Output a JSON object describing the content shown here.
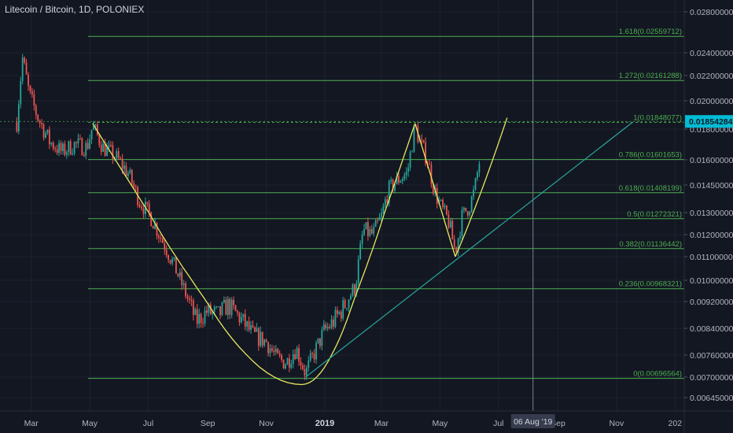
{
  "header": {
    "title": "Litecoin / Bitcoin, 1D, POLONIEX"
  },
  "chart_data": {
    "type": "candlestick",
    "symbol": "Litecoin / Bitcoin",
    "interval": "1D",
    "exchange": "POLONIEX",
    "y_axis": {
      "ticks": [
        "0.02800000",
        "0.02400000",
        "0.02200000",
        "0.02000000",
        "0.01800000",
        "0.01600000",
        "0.01450000",
        "0.01300000",
        "0.01200000",
        "0.01100000",
        "0.01000000",
        "0.00920000",
        "0.00840000",
        "0.00760000",
        "0.00700000",
        "0.00645000"
      ],
      "tick_values": [
        0.028,
        0.024,
        0.022,
        0.02,
        0.018,
        0.016,
        0.0145,
        0.013,
        0.012,
        0.011,
        0.01,
        0.0092,
        0.0084,
        0.0076,
        0.007,
        0.00645
      ]
    },
    "x_axis": {
      "labels": [
        "Mar",
        "May",
        "Jul",
        "Sep",
        "Nov",
        "2019",
        "Mar",
        "May",
        "Jul",
        "Sep",
        "Nov",
        "202"
      ],
      "crosshair_label": "06 Aug '19"
    },
    "current_price": {
      "label": "0.01854284",
      "value": 0.01854284,
      "color": "#00bcd4"
    },
    "fib_levels": [
      {
        "label": "1.618(0.02559712)",
        "value": 0.02559712
      },
      {
        "label": "1.272(0.02161288)",
        "value": 0.02161288
      },
      {
        "label": "1(0.01848077)",
        "value": 0.01848077
      },
      {
        "label": "0.786(0.01601653)",
        "value": 0.01601653
      },
      {
        "label": "0.618(0.01408199)",
        "value": 0.01408199
      },
      {
        "label": "0.5(0.01272321)",
        "value": 0.01272321
      },
      {
        "label": "0.382(0.01136442)",
        "value": 0.01136442
      },
      {
        "label": "0.236(0.00968321)",
        "value": 0.00968321
      },
      {
        "label": "0(0.00696564)",
        "value": 0.00696564
      }
    ],
    "price_path": [
      [
        "2018-02-14",
        0.0185
      ],
      [
        "2018-02-20",
        0.0235
      ],
      [
        "2018-02-27",
        0.0205
      ],
      [
        "2018-03-08",
        0.0188
      ],
      [
        "2018-03-20",
        0.0172
      ],
      [
        "2018-04-02",
        0.0165
      ],
      [
        "2018-04-15",
        0.017
      ],
      [
        "2018-04-28",
        0.0168
      ],
      [
        "2018-05-04",
        0.0182
      ],
      [
        "2018-05-15",
        0.0168
      ],
      [
        "2018-05-28",
        0.0162
      ],
      [
        "2018-06-10",
        0.0152
      ],
      [
        "2018-06-22",
        0.0136
      ],
      [
        "2018-07-04",
        0.0128
      ],
      [
        "2018-07-15",
        0.0118
      ],
      [
        "2018-07-28",
        0.0106
      ],
      [
        "2018-08-10",
        0.0094
      ],
      [
        "2018-08-20",
        0.0086
      ],
      [
        "2018-08-31",
        0.0089
      ],
      [
        "2018-09-12",
        0.0088
      ],
      [
        "2018-09-22",
        0.0091
      ],
      [
        "2018-10-05",
        0.0087
      ],
      [
        "2018-10-18",
        0.0082
      ],
      [
        "2018-11-01",
        0.008
      ],
      [
        "2018-11-12",
        0.0075
      ],
      [
        "2018-11-22",
        0.0074
      ],
      [
        "2018-12-02",
        0.0078
      ],
      [
        "2018-12-12",
        0.0071
      ],
      [
        "2018-12-20",
        0.0076
      ],
      [
        "2018-12-31",
        0.0083
      ],
      [
        "2019-01-10",
        0.0086
      ],
      [
        "2019-01-22",
        0.0091
      ],
      [
        "2019-02-02",
        0.0098
      ],
      [
        "2019-02-10",
        0.0122
      ],
      [
        "2019-02-20",
        0.012
      ],
      [
        "2019-03-01",
        0.0128
      ],
      [
        "2019-03-08",
        0.0142
      ],
      [
        "2019-03-18",
        0.0148
      ],
      [
        "2019-03-28",
        0.0152
      ],
      [
        "2019-04-05",
        0.0182
      ],
      [
        "2019-04-10",
        0.0172
      ],
      [
        "2019-04-18",
        0.016
      ],
      [
        "2019-04-25",
        0.0142
      ],
      [
        "2019-05-03",
        0.0132
      ],
      [
        "2019-05-10",
        0.0126
      ],
      [
        "2019-05-17",
        0.0112
      ],
      [
        "2019-05-24",
        0.0128
      ],
      [
        "2019-06-01",
        0.0134
      ],
      [
        "2019-06-06",
        0.0142
      ],
      [
        "2019-06-12",
        0.0162
      ]
    ],
    "drawings": {
      "cup_curve_color": "#e6e85f",
      "trendline_color": "#26a69a",
      "fib_color": "#4caf50",
      "crosshair_date": "2019-08-06"
    },
    "colors": {
      "up": "#26a69a",
      "down": "#ef5350",
      "background": "#131722",
      "text": "#b2b5be"
    }
  }
}
